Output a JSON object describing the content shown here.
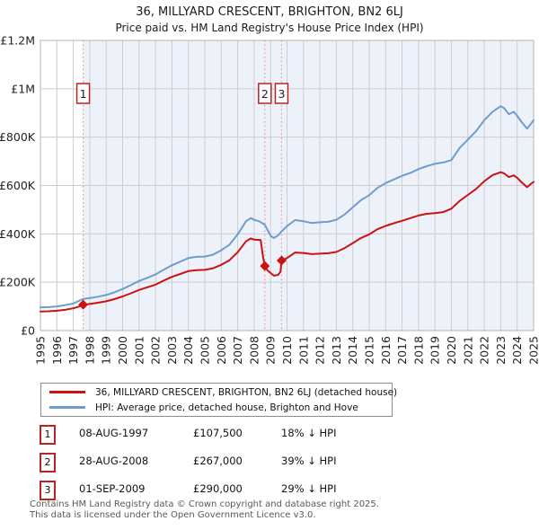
{
  "colors": {
    "red": "#cc1111",
    "blue": "#6e9dcd",
    "dashed_marker_line": "#ee8f8f",
    "shade": "#edf2fa",
    "grid": "#cccccc",
    "plot_border": "#b3b3b3",
    "axis_text": "#222222",
    "num_box_border": "#bb2222",
    "footer_text": "#595959"
  },
  "chart_data": {
    "type": "line",
    "title": "36, MILLYARD CRESCENT, BRIGHTON, BN2 6LJ",
    "subtitle": "Price paid vs. HM Land Registry's House Price Index (HPI)",
    "x_axis": {
      "min": 1995,
      "max": 2025,
      "tick_years": [
        1995,
        1996,
        1997,
        1998,
        1999,
        2000,
        2001,
        2002,
        2003,
        2004,
        2005,
        2006,
        2007,
        2008,
        2009,
        2010,
        2011,
        2012,
        2013,
        2014,
        2015,
        2016,
        2017,
        2018,
        2019,
        2020,
        2021,
        2022,
        2023,
        2024,
        2025
      ]
    },
    "y_axis": {
      "min": 0,
      "max": 1200000,
      "ticks": [
        {
          "label": "£0",
          "value": 0
        },
        {
          "label": "£200K",
          "value": 200000
        },
        {
          "label": "£400K",
          "value": 400000
        },
        {
          "label": "£600K",
          "value": 600000
        },
        {
          "label": "£800K",
          "value": 800000
        },
        {
          "label": "£1M",
          "value": 1000000
        },
        {
          "label": "£1.2M",
          "value": 1200000
        }
      ]
    },
    "grid": true,
    "legend_position": "below",
    "shaded_from_year": 1997.6,
    "series": [
      {
        "name": "36, MILLYARD CRESCENT, BRIGHTON, BN2 6LJ (detached house)",
        "color": "#cc1111",
        "points": [
          [
            1995,
            79000
          ],
          [
            1995.5,
            80000
          ],
          [
            1996,
            82000
          ],
          [
            1996.5,
            86000
          ],
          [
            1997,
            92000
          ],
          [
            1997.3,
            98000
          ],
          [
            1997.6,
            107500
          ],
          [
            1998,
            110000
          ],
          [
            1998.5,
            115000
          ],
          [
            1999,
            121000
          ],
          [
            1999.5,
            130000
          ],
          [
            2000,
            141000
          ],
          [
            2000.5,
            154000
          ],
          [
            2001,
            168000
          ],
          [
            2001.5,
            179000
          ],
          [
            2002,
            190000
          ],
          [
            2002.5,
            207000
          ],
          [
            2003,
            222000
          ],
          [
            2003.5,
            234000
          ],
          [
            2004,
            246000
          ],
          [
            2004.5,
            250000
          ],
          [
            2005,
            251000
          ],
          [
            2005.5,
            258000
          ],
          [
            2006,
            272000
          ],
          [
            2006.5,
            291000
          ],
          [
            2007,
            324000
          ],
          [
            2007.5,
            369000
          ],
          [
            2007.8,
            381000
          ],
          [
            2008,
            376000
          ],
          [
            2008.4,
            374000
          ],
          [
            2008.55,
            300000
          ],
          [
            2008.65,
            267000
          ],
          [
            2008.8,
            250000
          ],
          [
            2009,
            238000
          ],
          [
            2009.2,
            227000
          ],
          [
            2009.45,
            230000
          ],
          [
            2009.6,
            243000
          ],
          [
            2009.67,
            290000
          ],
          [
            2010,
            300000
          ],
          [
            2010.5,
            323000
          ],
          [
            2011,
            321000
          ],
          [
            2011.5,
            316000
          ],
          [
            2012,
            318000
          ],
          [
            2012.5,
            320000
          ],
          [
            2013,
            325000
          ],
          [
            2013.5,
            341000
          ],
          [
            2014,
            362000
          ],
          [
            2014.5,
            383000
          ],
          [
            2015,
            398000
          ],
          [
            2015.5,
            419000
          ],
          [
            2016,
            433000
          ],
          [
            2016.5,
            444000
          ],
          [
            2017,
            454000
          ],
          [
            2017.5,
            465000
          ],
          [
            2018,
            476000
          ],
          [
            2018.5,
            483000
          ],
          [
            2019,
            486000
          ],
          [
            2019.5,
            490000
          ],
          [
            2020,
            504000
          ],
          [
            2020.5,
            536000
          ],
          [
            2021,
            561000
          ],
          [
            2021.5,
            586000
          ],
          [
            2022,
            618000
          ],
          [
            2022.5,
            643000
          ],
          [
            2023,
            655000
          ],
          [
            2023.2,
            650000
          ],
          [
            2023.5,
            635000
          ],
          [
            2023.8,
            642000
          ],
          [
            2024,
            632000
          ],
          [
            2024.3,
            611000
          ],
          [
            2024.6,
            593000
          ],
          [
            2024.8,
            605000
          ],
          [
            2025,
            615000
          ]
        ]
      },
      {
        "name": "HPI: Average price, detached house, Brighton and Hove",
        "color": "#6e9dcd",
        "points": [
          [
            1995,
            96000
          ],
          [
            1995.5,
            97000
          ],
          [
            1996,
            100000
          ],
          [
            1996.5,
            105000
          ],
          [
            1997,
            112000
          ],
          [
            1997.6,
            131000
          ],
          [
            1998,
            134000
          ],
          [
            1998.5,
            140000
          ],
          [
            1999,
            147000
          ],
          [
            1999.5,
            158000
          ],
          [
            2000,
            172000
          ],
          [
            2000.5,
            188000
          ],
          [
            2001,
            205000
          ],
          [
            2001.5,
            218000
          ],
          [
            2002,
            232000
          ],
          [
            2002.5,
            252000
          ],
          [
            2003,
            270000
          ],
          [
            2003.5,
            285000
          ],
          [
            2004,
            300000
          ],
          [
            2004.5,
            305000
          ],
          [
            2005,
            306000
          ],
          [
            2005.5,
            314000
          ],
          [
            2006,
            332000
          ],
          [
            2006.5,
            355000
          ],
          [
            2007,
            398000
          ],
          [
            2007.5,
            452000
          ],
          [
            2007.8,
            465000
          ],
          [
            2008,
            458000
          ],
          [
            2008.3,
            452000
          ],
          [
            2008.65,
            438000
          ],
          [
            2009,
            392000
          ],
          [
            2009.2,
            383000
          ],
          [
            2009.45,
            393000
          ],
          [
            2009.67,
            410000
          ],
          [
            2010,
            432000
          ],
          [
            2010.5,
            457000
          ],
          [
            2011,
            452000
          ],
          [
            2011.5,
            445000
          ],
          [
            2012,
            448000
          ],
          [
            2012.5,
            450000
          ],
          [
            2013,
            458000
          ],
          [
            2013.5,
            480000
          ],
          [
            2014,
            510000
          ],
          [
            2014.5,
            540000
          ],
          [
            2015,
            560000
          ],
          [
            2015.5,
            590000
          ],
          [
            2016,
            610000
          ],
          [
            2016.5,
            625000
          ],
          [
            2017,
            640000
          ],
          [
            2017.5,
            652000
          ],
          [
            2018,
            668000
          ],
          [
            2018.5,
            680000
          ],
          [
            2019,
            690000
          ],
          [
            2019.5,
            695000
          ],
          [
            2020,
            705000
          ],
          [
            2020.5,
            755000
          ],
          [
            2021,
            790000
          ],
          [
            2021.5,
            825000
          ],
          [
            2022,
            870000
          ],
          [
            2022.5,
            905000
          ],
          [
            2023,
            928000
          ],
          [
            2023.2,
            920000
          ],
          [
            2023.5,
            895000
          ],
          [
            2023.8,
            905000
          ],
          [
            2024,
            888000
          ],
          [
            2024.3,
            860000
          ],
          [
            2024.6,
            835000
          ],
          [
            2024.8,
            852000
          ],
          [
            2025,
            870000
          ]
        ]
      }
    ],
    "sales": [
      {
        "num": "1",
        "year": 1997.6,
        "price": 107500
      },
      {
        "num": "2",
        "year": 2008.65,
        "price": 267000
      },
      {
        "num": "3",
        "year": 2009.67,
        "price": 290000
      }
    ]
  },
  "sales_table": {
    "rows": [
      {
        "num": "1",
        "date": "08-AUG-1997",
        "price": "£107,500",
        "vs_hpi": "18% ↓ HPI"
      },
      {
        "num": "2",
        "date": "28-AUG-2008",
        "price": "£267,000",
        "vs_hpi": "39% ↓ HPI"
      },
      {
        "num": "3",
        "date": "01-SEP-2009",
        "price": "£290,000",
        "vs_hpi": "29% ↓ HPI"
      }
    ]
  },
  "footer": {
    "line1": "Contains HM Land Registry data © Crown copyright and database right 2025.",
    "line2": "This data is licensed under the Open Government Licence v3.0."
  }
}
